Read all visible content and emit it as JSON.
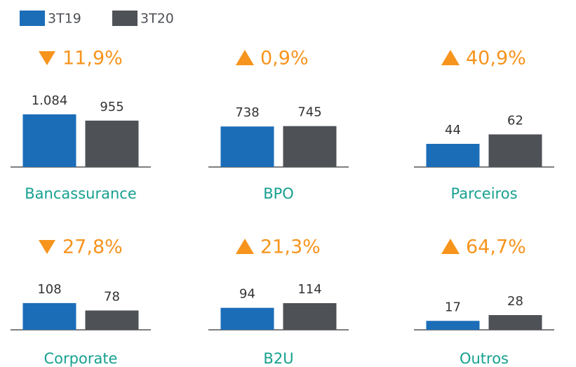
{
  "legend": [
    {
      "name": "3T19",
      "color": "#1b6db8"
    },
    {
      "name": "3T20",
      "color": "#4e5156"
    }
  ],
  "chart_data": [
    {
      "type": "bar",
      "title": "Bancassurance",
      "change": "11,9%",
      "trend": "down",
      "values": [
        1084,
        955
      ],
      "value_labels": [
        "1.084",
        "955"
      ],
      "ylim": [
        0,
        1300
      ]
    },
    {
      "type": "bar",
      "title": "BPO",
      "change": "0,9%",
      "trend": "up",
      "values": [
        738,
        745
      ],
      "ylim": [
        0,
        1150
      ]
    },
    {
      "type": "bar",
      "title": "Parceiros",
      "change": "40,9%",
      "trend": "up",
      "values": [
        44,
        62
      ],
      "ylim": [
        0,
        120
      ]
    },
    {
      "type": "bar",
      "title": "Corporate",
      "change": "27,8%",
      "trend": "down",
      "values": [
        108,
        78
      ],
      "ylim": [
        0,
        255
      ]
    },
    {
      "type": "bar",
      "title": "B2U",
      "change": "21,3%",
      "trend": "up",
      "values": [
        94,
        114
      ],
      "ylim": [
        0,
        270
      ]
    },
    {
      "type": "bar",
      "title": "Outros",
      "change": "64,7%",
      "trend": "up",
      "values": [
        17,
        28
      ],
      "ylim": [
        0,
        120
      ]
    }
  ]
}
